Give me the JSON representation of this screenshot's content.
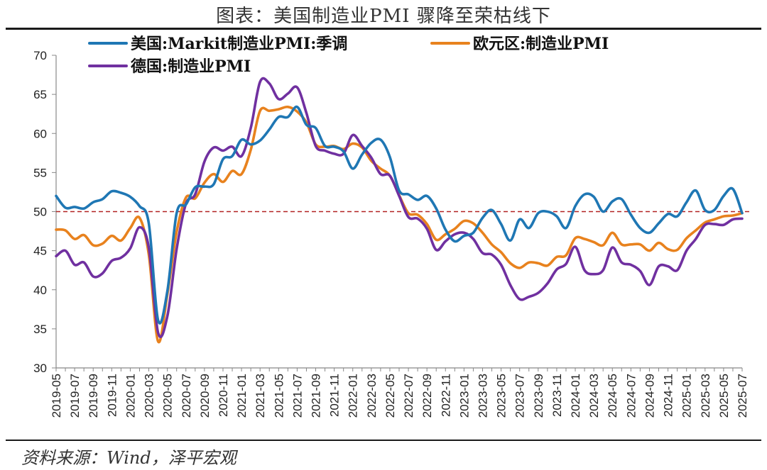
{
  "title": "图表：美国制造业PMI 骤降至荣枯线下",
  "source": "资料来源：Wind，泽平宏观",
  "chart_data": {
    "type": "line",
    "title": "图表：美国制造业PMI 骤降至荣枯线下",
    "ylim": [
      30,
      70
    ],
    "yticks": [
      30,
      35,
      40,
      45,
      50,
      55,
      60,
      65,
      70
    ],
    "xticks": [
      "2019-05",
      "2019-07",
      "2019-09",
      "2019-11",
      "2020-01",
      "2020-03",
      "2020-05",
      "2020-07",
      "2020-09",
      "2020-11",
      "2021-01",
      "2021-03",
      "2021-05",
      "2021-07",
      "2021-09",
      "2021-11",
      "2022-01",
      "2022-03",
      "2022-05",
      "2022-07",
      "2022-09",
      "2022-11",
      "2023-01",
      "2023-03",
      "2023-05",
      "2023-07",
      "2023-09",
      "2023-11",
      "2024-01",
      "2024-03",
      "2024-05",
      "2024-07",
      "2024-09",
      "2024-11",
      "2025-01",
      "2025-03",
      "2025-05",
      "2025-07"
    ],
    "reference_line": 50,
    "grid": false,
    "legend_position": "top",
    "series": [
      {
        "name": "美国:Markit制造业PMI:季调",
        "color": "#1f77b4",
        "values": [
          52.0,
          50.5,
          50.6,
          50.4,
          51.2,
          51.6,
          52.6,
          52.4,
          51.9,
          50.7,
          48.5,
          36.1,
          39.8,
          49.8,
          50.9,
          53.1,
          53.2,
          53.5,
          56.7,
          57.1,
          59.2,
          58.6,
          59.1,
          60.5,
          62.1,
          62.1,
          63.4,
          61.1,
          60.7,
          58.4,
          58.3,
          57.7,
          55.5,
          57.3,
          58.8,
          59.2,
          57.0,
          52.7,
          52.2,
          51.5,
          52.0,
          50.4,
          47.7,
          46.2,
          46.9,
          47.3,
          49.2,
          50.2,
          48.4,
          46.3,
          49.0,
          47.9,
          49.8,
          50.0,
          49.4,
          47.9,
          50.7,
          52.2,
          51.9,
          50.0,
          51.3,
          51.6,
          49.6,
          47.9,
          47.3,
          48.5,
          49.7,
          49.4,
          51.2,
          52.7,
          50.2,
          50.2,
          52.0,
          52.9,
          49.8
        ]
      },
      {
        "name": "欧元区:制造业PMI",
        "color": "#e8821e",
        "values": [
          47.7,
          47.6,
          46.5,
          47.0,
          45.7,
          45.9,
          46.9,
          46.3,
          47.9,
          49.2,
          44.5,
          33.4,
          39.4,
          47.4,
          51.8,
          51.7,
          53.7,
          54.8,
          53.8,
          55.2,
          54.8,
          57.9,
          62.9,
          62.9,
          63.1,
          63.4,
          62.8,
          61.4,
          58.6,
          58.3,
          58.4,
          58.0,
          58.7,
          58.2,
          56.5,
          55.5,
          54.6,
          52.1,
          49.8,
          49.6,
          48.4,
          46.4,
          47.1,
          47.8,
          48.8,
          48.5,
          47.3,
          45.8,
          44.8,
          43.4,
          42.8,
          43.5,
          43.4,
          43.1,
          44.2,
          44.4,
          46.6,
          46.5,
          46.1,
          45.7,
          47.3,
          45.8,
          45.8,
          45.8,
          45.0,
          46.0,
          45.2,
          45.1,
          46.6,
          47.6,
          48.6,
          49.0,
          49.4,
          49.5,
          49.8
        ]
      },
      {
        "name": "德国:制造业PMI",
        "color": "#7030a0",
        "values": [
          44.3,
          45.0,
          43.2,
          43.5,
          41.7,
          42.1,
          43.7,
          44.1,
          45.3,
          48.0,
          45.4,
          34.5,
          36.6,
          45.2,
          51.0,
          52.2,
          56.4,
          58.2,
          57.8,
          58.3,
          57.1,
          60.7,
          66.6,
          66.4,
          64.4,
          65.1,
          65.9,
          62.6,
          58.4,
          57.8,
          57.4,
          57.4,
          59.8,
          58.4,
          56.9,
          54.8,
          54.6,
          52.0,
          49.3,
          49.1,
          47.8,
          45.1,
          46.2,
          47.1,
          47.3,
          46.5,
          44.7,
          44.5,
          43.2,
          40.6,
          38.8,
          39.1,
          39.6,
          40.8,
          42.6,
          43.3,
          45.5,
          42.5,
          42.0,
          42.5,
          45.4,
          43.5,
          43.2,
          42.4,
          40.6,
          43.0,
          43.0,
          42.5,
          45.0,
          46.5,
          48.3,
          48.4,
          48.3,
          49.0,
          49.1
        ]
      }
    ]
  }
}
